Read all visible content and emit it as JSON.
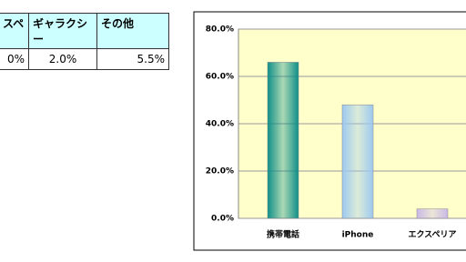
{
  "table": {
    "header": [
      "スペ",
      "ギャラクシー",
      "その他"
    ],
    "rows": [
      [
        "0%",
        "2.0%",
        "5.5%"
      ]
    ]
  },
  "chart_data": {
    "type": "bar",
    "categories": [
      "携帯電話",
      "iPhone",
      "エクスペリア"
    ],
    "values": [
      66.0,
      48.0,
      4.0
    ],
    "colors": [
      "#0f8f88",
      "#9cc8f0",
      "#c8b8e8"
    ],
    "ylim": [
      0,
      80
    ],
    "yticks": [
      {
        "value": 0,
        "label": "0.0%"
      },
      {
        "value": 20,
        "label": "20.0%"
      },
      {
        "value": 40,
        "label": "40.0%"
      },
      {
        "value": 60,
        "label": "60.0%"
      },
      {
        "value": 80,
        "label": "80.0%"
      }
    ],
    "grid": true
  }
}
